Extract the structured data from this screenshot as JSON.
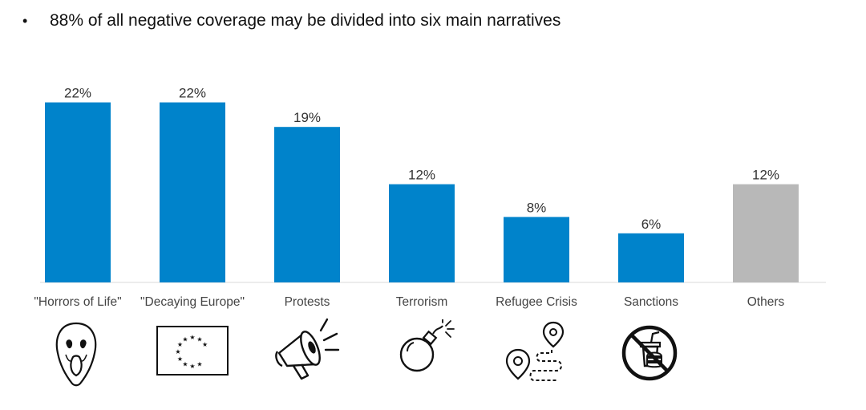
{
  "headline": {
    "bullet": "•",
    "text": "88% of all negative coverage may be divided into six main narratives"
  },
  "chart_data": {
    "type": "bar",
    "categories": [
      "\"Horrors of Life\"",
      "\"Decaying Europe\"",
      "Protests",
      "Terrorism",
      "Refugee Crisis",
      "Sanctions",
      "Others"
    ],
    "values": [
      22,
      22,
      19,
      12,
      8,
      6,
      12
    ],
    "data_labels": [
      "22%",
      "22%",
      "19%",
      "12%",
      "8%",
      "6%",
      "12%"
    ],
    "colors": [
      "#0083cb",
      "#0083cb",
      "#0083cb",
      "#0083cb",
      "#0083cb",
      "#0083cb",
      "#b8b8b8"
    ],
    "ylim": [
      0,
      25
    ],
    "grid": false,
    "legend": "none"
  },
  "icons": [
    "scream-mask-icon",
    "eu-flag-icon",
    "megaphone-icon",
    "bomb-icon",
    "route-pin-icon",
    "no-food-icon"
  ]
}
